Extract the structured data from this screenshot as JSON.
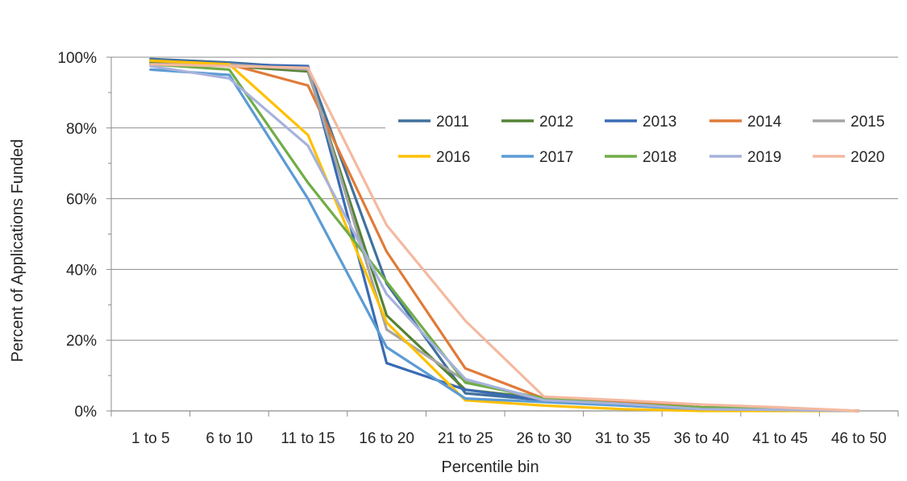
{
  "chart_data": {
    "type": "line",
    "title": "",
    "xlabel": "Percentile bin",
    "ylabel": "Percent of Applications Funded",
    "categories": [
      "1 to 5",
      "6 to 10",
      "11 to 15",
      "16 to 20",
      "21 to 25",
      "26 to 30",
      "31 to 35",
      "36 to 40",
      "41 to 45",
      "46 to 50"
    ],
    "ylim": [
      0,
      100
    ],
    "yticks": [
      0,
      20,
      40,
      60,
      80,
      100
    ],
    "ytick_labels": [
      "0%",
      "20%",
      "40%",
      "60%",
      "80%",
      "100%"
    ],
    "grid": true,
    "legend_position": "upper-right inside plot",
    "series": [
      {
        "name": "2011",
        "color": "#41719c",
        "values": [
          99.5,
          98.5,
          97,
          36,
          5,
          3,
          2,
          0.5,
          0.3,
          0
        ]
      },
      {
        "name": "2012",
        "color": "#548235",
        "values": [
          98.5,
          97.5,
          96,
          27,
          6,
          3.5,
          2,
          1,
          0.8,
          0
        ]
      },
      {
        "name": "2013",
        "color": "#3a6bb4",
        "values": [
          98,
          98,
          97.5,
          13.5,
          6,
          3,
          2.5,
          1,
          0.5,
          0
        ]
      },
      {
        "name": "2014",
        "color": "#e07b39",
        "values": [
          99,
          98,
          92,
          45,
          12,
          3.5,
          2.5,
          1,
          0.5,
          0
        ]
      },
      {
        "name": "2015",
        "color": "#a5a5a5",
        "values": [
          98,
          98,
          96.5,
          23,
          8.5,
          3,
          1.5,
          0.5,
          0.3,
          0
        ]
      },
      {
        "name": "2016",
        "color": "#ffc000",
        "values": [
          99,
          98,
          78,
          25,
          3,
          1.5,
          0.5,
          0,
          0,
          0
        ]
      },
      {
        "name": "2017",
        "color": "#5b9bd5",
        "values": [
          96.5,
          95,
          60,
          18,
          3.5,
          2.5,
          1.5,
          0.5,
          0.3,
          0
        ]
      },
      {
        "name": "2018",
        "color": "#70ad47",
        "values": [
          98,
          96.5,
          64.5,
          36.5,
          8,
          3.5,
          2,
          1,
          0.5,
          0
        ]
      },
      {
        "name": "2019",
        "color": "#a6b2dc",
        "values": [
          97.5,
          94,
          75,
          33,
          9,
          3,
          2,
          0.5,
          0.3,
          0
        ]
      },
      {
        "name": "2020",
        "color": "#f4b9a0",
        "values": [
          98,
          97.5,
          97,
          52.5,
          25.5,
          4,
          3,
          1.8,
          1,
          0
        ]
      }
    ]
  }
}
